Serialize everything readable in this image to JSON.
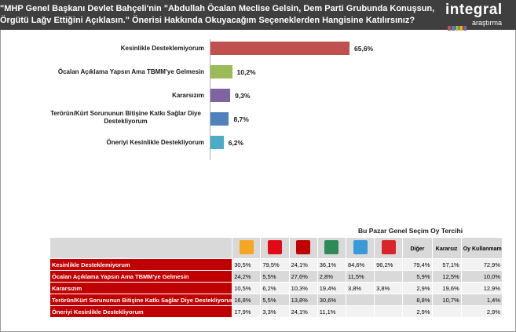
{
  "header": {
    "question_line1": "\"MHP Genel Başkanı Devlet Bahçeli'nin \"Abdullah Öcalan Meclise Gelsin, Dem Parti Grubunda Konuşsun,",
    "question_line2": "Örgütü Lağv Ettiğini Açıklasın.\" Önerisi Hakkında Okuyacağım Seçeneklerden Hangisine  Katılırsınız?",
    "logo_word": "integral",
    "logo_sub": "araştırma",
    "bg_color": "#3f3f3f"
  },
  "chart_data": [
    {
      "type": "bar",
      "orientation": "horizontal",
      "categories": [
        "Kesinlikle Desteklemiyorum",
        "Öcalan Açıklama Yapsın Ama TBMM'ye Gelmesin",
        "Kararsızım",
        "Terörün/Kürt Sorununun Bitişine Katkı Sağlar Diye Destekliyorum",
        "Öneriyi Kesinlikle Destekliyorum"
      ],
      "values": [
        65.6,
        10.2,
        9.3,
        8.7,
        6.2
      ],
      "value_labels": [
        "65,6%",
        "10,2%",
        "9,3%",
        "8,7%",
        "6,2%"
      ],
      "colors": [
        "#c0504d",
        "#9bbb59",
        "#8064a2",
        "#4f81bd",
        "#4bacc6"
      ],
      "xlim": [
        0,
        100
      ],
      "grid": false,
      "legend": "none"
    },
    {
      "type": "table",
      "title": "Bu Pazar Genel Seçim Oy Tercihi",
      "columns": [
        {
          "label": "",
          "icon": "ak-parti-logo-icon",
          "color": "#f5a623"
        },
        {
          "label": "",
          "icon": "chp-logo-icon",
          "color": "#e30a17"
        },
        {
          "label": "",
          "icon": "mhp-logo-icon",
          "color": "#c00000"
        },
        {
          "label": "",
          "icon": "dem-parti-logo-icon",
          "color": "#2e8b57"
        },
        {
          "label": "",
          "icon": "iyi-parti-logo-icon",
          "color": "#3a9ad9"
        },
        {
          "label": "",
          "icon": "yeniden-refah-logo-icon",
          "color": "#d9252a"
        },
        {
          "label": "Diğer",
          "icon": "",
          "color": ""
        },
        {
          "label": "Kararsız",
          "icon": "",
          "color": ""
        },
        {
          "label": "Oy Kullanmam",
          "icon": "",
          "color": ""
        }
      ],
      "rows": [
        {
          "label": "Kesinlikle Desteklemiyorum",
          "cells": [
            "30,5%",
            "79,5%",
            "24,1%",
            "36,1%",
            "84,6%",
            "96,2%",
            "79,4%",
            "57,1%",
            "72,9%"
          ]
        },
        {
          "label": "Öcalan Açıklama Yapsın Ama TBMM'ye Gelmesin",
          "cells": [
            "24,2%",
            "5,5%",
            "27,6%",
            "2,8%",
            "11,5%",
            "",
            "5,9%",
            "12,5%",
            "10,0%"
          ]
        },
        {
          "label": "Kararsızım",
          "cells": [
            "10,5%",
            "6,2%",
            "10,3%",
            "19,4%",
            "3,8%",
            "3,8%",
            "2,9%",
            "19,6%",
            "12,9%"
          ]
        },
        {
          "label": "Terörün/Kürt Sorununun Bitişine Katkı Sağlar Diye Destekliyorum",
          "cells": [
            "16,8%",
            "5,5%",
            "13,8%",
            "30,6%",
            "",
            "",
            "8,8%",
            "10,7%",
            "1,4%"
          ]
        },
        {
          "label": "Öneriyi Kesinlikle Destekliyorum",
          "cells": [
            "17,9%",
            "3,3%",
            "24,1%",
            "11,1%",
            "",
            "",
            "2,9%",
            "",
            "2,9%"
          ]
        }
      ]
    }
  ]
}
